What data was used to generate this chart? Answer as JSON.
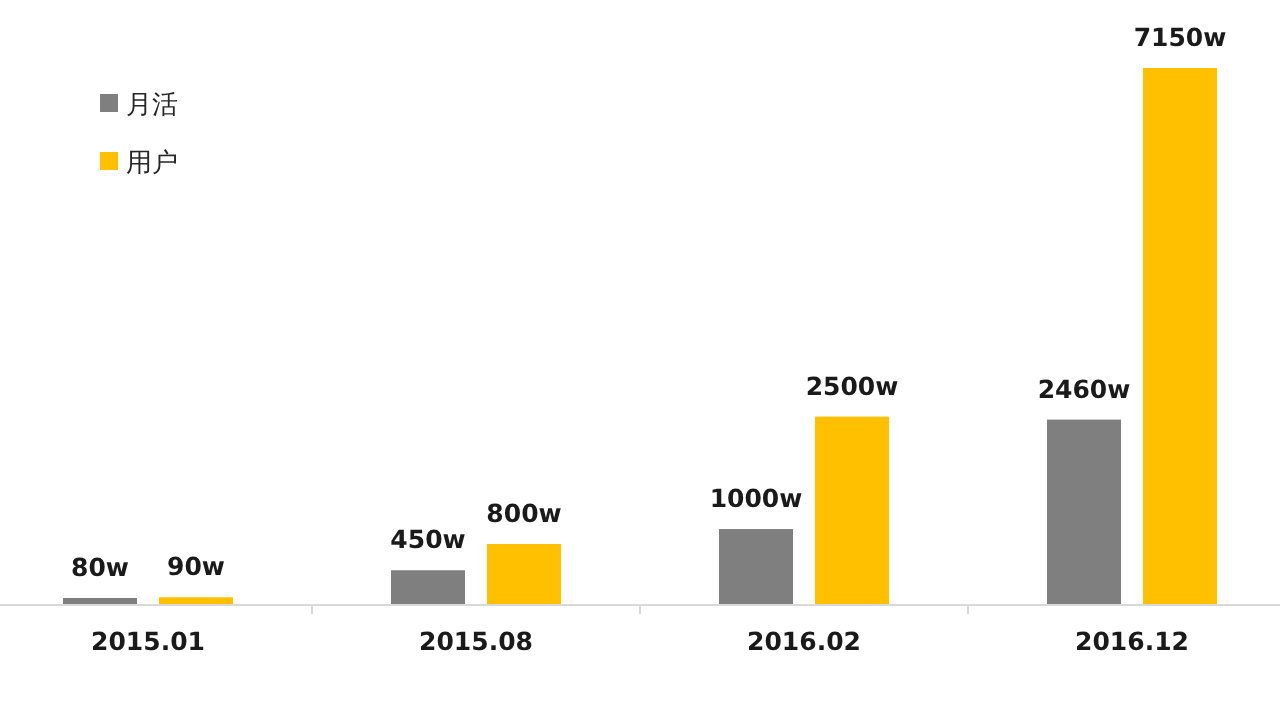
{
  "chart_data": {
    "type": "bar",
    "categories": [
      "2015.01",
      "2015.08",
      "2016.02",
      "2016.12"
    ],
    "series": [
      {
        "name": "月活",
        "color": "#7f7f7f",
        "values": [
          80,
          450,
          1000,
          2460
        ],
        "value_labels": [
          "80w",
          "450w",
          "1000w",
          "2460w"
        ]
      },
      {
        "name": "用户",
        "color": "#ffc000",
        "values": [
          90,
          800,
          2500,
          7150
        ],
        "value_labels": [
          "90w",
          "800w",
          "2500w",
          "7150w"
        ]
      }
    ],
    "legend": "top left"
  }
}
